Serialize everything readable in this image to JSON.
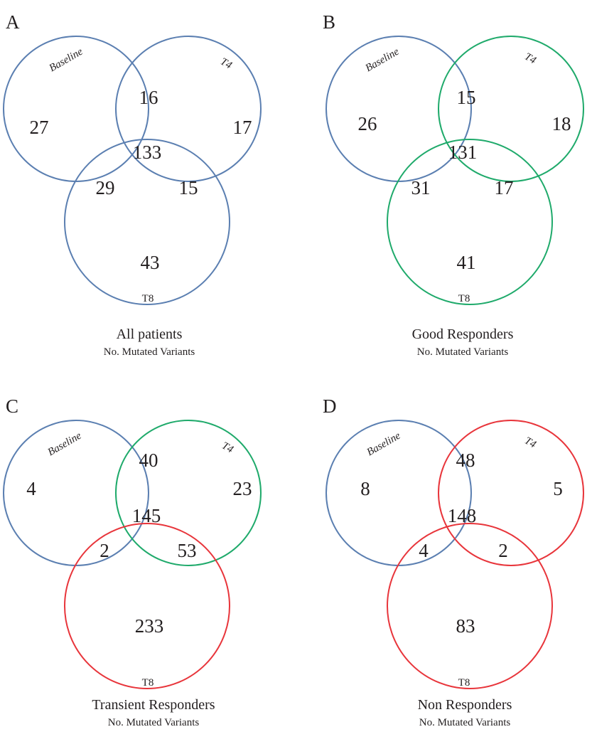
{
  "colors": {
    "blue": "#5b7fb1",
    "green": "#1faa6b",
    "red": "#e8353b",
    "text": "#231f20"
  },
  "panels": [
    {
      "letter": "A",
      "labels": {
        "baseline": "Baseline",
        "t4": "T4",
        "t8": "T8"
      },
      "circle_colors": [
        "blue",
        "blue",
        "blue"
      ],
      "counts": {
        "baseline_only": "27",
        "t4_only": "17",
        "t8_only": "43",
        "baseline_t4": "16",
        "baseline_t8": "29",
        "t4_t8": "15",
        "all": "133"
      },
      "title": "All patients",
      "subtitle": "No. Mutated Variants"
    },
    {
      "letter": "B",
      "labels": {
        "baseline": "Baseline",
        "t4": "T4",
        "t8": "T8"
      },
      "circle_colors": [
        "blue",
        "green",
        "green"
      ],
      "counts": {
        "baseline_only": "26",
        "t4_only": "18",
        "t8_only": "41",
        "baseline_t4": "15",
        "baseline_t8": "31",
        "t4_t8": "17",
        "all": "131"
      },
      "title": "Good Responders",
      "subtitle": "No. Mutated Variants"
    },
    {
      "letter": "C",
      "labels": {
        "baseline": "Baseline",
        "t4": "T4",
        "t8": "T8"
      },
      "circle_colors": [
        "blue",
        "green",
        "red"
      ],
      "counts": {
        "baseline_only": "4",
        "t4_only": "23",
        "t8_only": "233",
        "baseline_t4": "40",
        "baseline_t8": "2",
        "t4_t8": "53",
        "all": "145"
      },
      "title": "Transient Responders",
      "subtitle": "No. Mutated Variants"
    },
    {
      "letter": "D",
      "labels": {
        "baseline": "Baseline",
        "t4": "T4",
        "t8": "T8"
      },
      "circle_colors": [
        "blue",
        "red",
        "red"
      ],
      "counts": {
        "baseline_only": "8",
        "t4_only": "5",
        "t8_only": "83",
        "baseline_t4": "48",
        "baseline_t8": "4",
        "t4_t8": "2",
        "all": "148"
      },
      "title": "Non Responders",
      "subtitle": "No. Mutated Variants"
    }
  ]
}
